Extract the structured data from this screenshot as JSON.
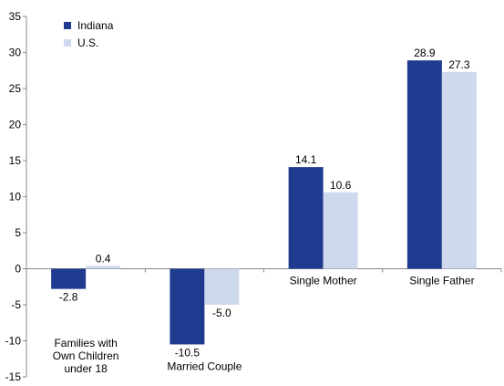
{
  "chart_data": {
    "type": "bar",
    "categories": [
      [
        "Families with",
        "Own Children",
        "under 18"
      ],
      [
        "Married Couple"
      ],
      [
        "Single Mother"
      ],
      [
        "Single Father"
      ]
    ],
    "series": [
      {
        "name": "Indiana",
        "values": [
          -2.8,
          -10.5,
          14.1,
          28.9
        ],
        "labels": [
          "-2.8",
          "-10.5",
          "14.1",
          "28.9"
        ],
        "color": "#1f3b8f"
      },
      {
        "name": "U.S.",
        "values": [
          0.4,
          -5.0,
          10.6,
          27.3
        ],
        "labels": [
          "0.4",
          "-5.0",
          "10.6",
          "27.3"
        ],
        "color": "#cfd9ed"
      }
    ],
    "yticks": [
      "-15",
      "-10",
      "-5",
      "0",
      "5",
      "10",
      "15",
      "20",
      "25",
      "30",
      "35"
    ],
    "ylim": [
      -15,
      35
    ],
    "legend_position": "top-left",
    "axis_color": "#888888"
  }
}
